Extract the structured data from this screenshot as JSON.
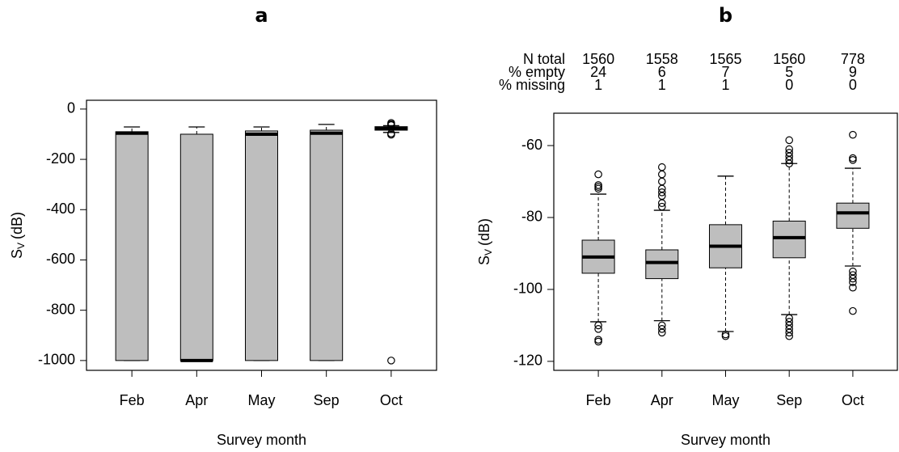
{
  "chart_data": [
    {
      "type": "box",
      "title": "a",
      "x_label": "Survey month",
      "y_label": {
        "symbol": "S",
        "subscript": "V",
        "unit": "(dB)"
      },
      "categories": [
        "Feb",
        "Apr",
        "May",
        "Sep",
        "Oct"
      ],
      "color": "#bebebe",
      "ylim": [
        -1039,
        35
      ],
      "yticks": [
        0,
        -200,
        -400,
        -600,
        -800,
        -1000
      ],
      "boxes": [
        {
          "low": -1000,
          "q1": -1000,
          "median": -96,
          "q3": -90,
          "high": -71,
          "outliers": []
        },
        {
          "low": -1000,
          "q1": -1000,
          "median": -1000,
          "q3": -100,
          "high": -71,
          "outliers": []
        },
        {
          "low": -1000,
          "q1": -1000,
          "median": -100,
          "q3": -87,
          "high": -71,
          "outliers": []
        },
        {
          "low": -1000,
          "q1": -1000,
          "median": -96,
          "q3": -84,
          "high": -61,
          "outliers": []
        },
        {
          "low": -93,
          "q1": -84,
          "median": -77,
          "q3": -70,
          "high": -66,
          "outliers": [
            -55,
            -60,
            -64,
            -97,
            -102,
            -1000
          ]
        }
      ]
    },
    {
      "type": "box",
      "title": "b",
      "x_label": "Survey month",
      "y_label": {
        "symbol": "S",
        "subscript": "V",
        "unit": "(dB)"
      },
      "categories": [
        "Feb",
        "Apr",
        "May",
        "Sep",
        "Oct"
      ],
      "color": "#bebebe",
      "ylim": [
        -122.5,
        -51
      ],
      "yticks": [
        -60,
        -80,
        -100,
        -120
      ],
      "table": [
        {
          "label": "N total",
          "values": [
            1560,
            1558,
            1565,
            1560,
            778
          ]
        },
        {
          "label": "% empty",
          "values": [
            24,
            6,
            7,
            5,
            9
          ]
        },
        {
          "label": "% missing",
          "values": [
            1,
            1,
            1,
            0,
            0
          ]
        }
      ],
      "boxes": [
        {
          "low": -109,
          "q1": -95.5,
          "median": -91,
          "q3": -86.3,
          "high": -73.5,
          "outliers": [
            -68,
            -71,
            -71.5,
            -72,
            -110,
            -111,
            -114,
            -114.5
          ]
        },
        {
          "low": -108.7,
          "q1": -97,
          "median": -92.5,
          "q3": -89,
          "high": -78,
          "outliers": [
            -66,
            -68,
            -70,
            -72,
            -73,
            -74,
            -76,
            -77,
            -110,
            -111,
            -112
          ]
        },
        {
          "low": -111.7,
          "q1": -94,
          "median": -88,
          "q3": -82,
          "high": -68.5,
          "outliers": [
            -112.5,
            -113
          ]
        },
        {
          "low": -107,
          "q1": -91.2,
          "median": -85.6,
          "q3": -81,
          "high": -65,
          "outliers": [
            -58.5,
            -61,
            -62,
            -63,
            -64,
            -65,
            -108,
            -109,
            -110,
            -111,
            -112,
            -113
          ]
        },
        {
          "low": -93.5,
          "q1": -83,
          "median": -78.7,
          "q3": -76,
          "high": -66.3,
          "outliers": [
            -57,
            -63.5,
            -64,
            -95,
            -96,
            -97,
            -98,
            -99.5,
            -106
          ]
        }
      ]
    }
  ]
}
